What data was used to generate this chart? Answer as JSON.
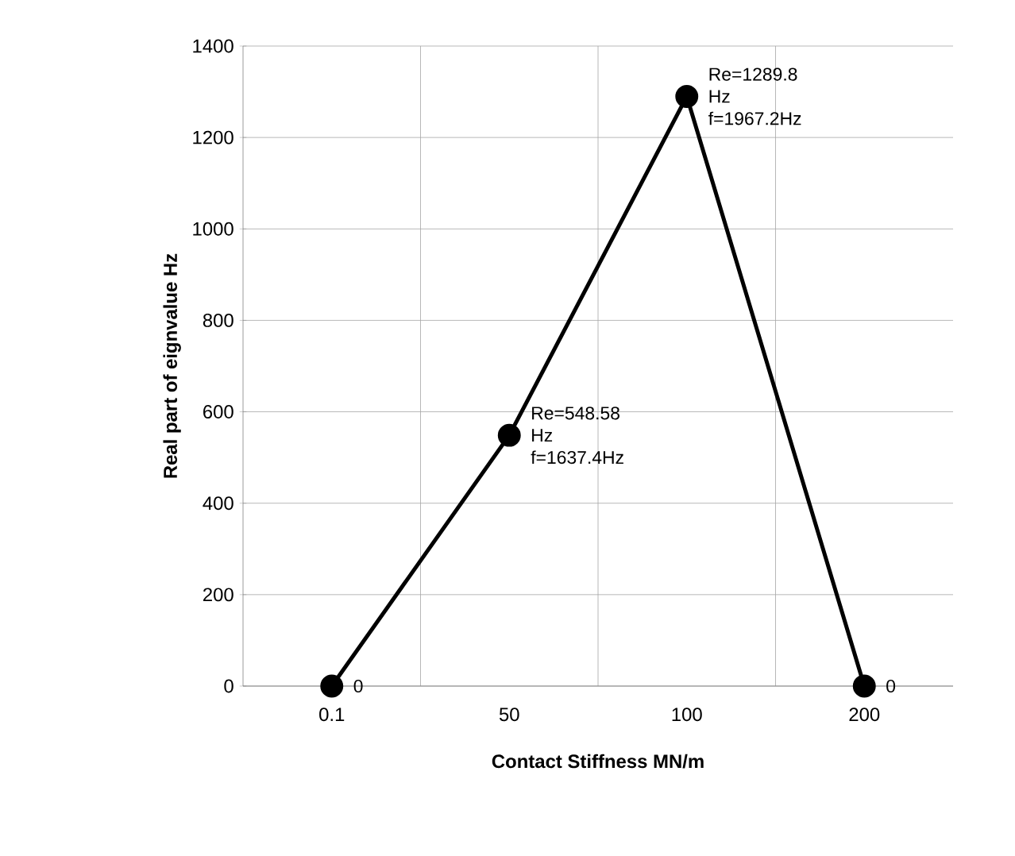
{
  "chart_data": {
    "type": "line",
    "xlabel": "Contact Stiffness MN/m",
    "ylabel": "Real part of eignvalue Hz",
    "categories": [
      "0.1",
      "50",
      "100",
      "200"
    ],
    "values": [
      0,
      548.58,
      1289.8,
      0
    ],
    "value_labels": [
      "0",
      "Re=548.58 Hz f=1637.4Hz",
      "Re=1289.8 Hz f=1967.2Hz",
      "0"
    ],
    "color": "#000000",
    "marker": "circle",
    "line_style": "solid",
    "grid": true,
    "ylim": [
      0,
      1400
    ],
    "yticks": [
      0,
      200,
      400,
      600,
      800,
      1000,
      1200,
      1400
    ]
  }
}
